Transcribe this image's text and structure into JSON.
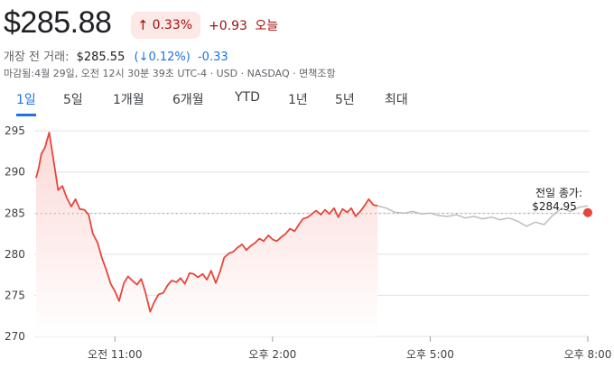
{
  "quote": {
    "price": "$285.88",
    "change_pct": "0.33%",
    "change_arrow": "↑",
    "change_abs": "+0.93",
    "change_period": "오늘"
  },
  "premarket": {
    "label": "개장 전 거래:",
    "price": "$285.55",
    "pct": "(↓0.12%)",
    "abs": "-0.33"
  },
  "closed_info": "마감됨:4월 29일, 오전 12시 30분 39초 UTC-4 · USD · NASDAQ · 면책조항",
  "tabs": [
    {
      "label": "1일",
      "active": true
    },
    {
      "label": "5일",
      "active": false
    },
    {
      "label": "1개월",
      "active": false
    },
    {
      "label": "6개월",
      "active": false
    },
    {
      "label": "YTD",
      "active": false
    },
    {
      "label": "1년",
      "active": false
    },
    {
      "label": "5년",
      "active": false
    },
    {
      "label": "최대",
      "active": false
    }
  ],
  "colors": {
    "regular_line": "#e8453c",
    "after_hours_line": "#bdbdbd",
    "fill_top": "#fbd9d6",
    "grid": "#e0e0e0",
    "prev_close_dot": "#e8453c"
  },
  "chart_data": {
    "type": "line",
    "x_ticks": [
      "오전 11:00",
      "오후 2:00",
      "오후 5:00",
      "오후 8:00"
    ],
    "y_ticks": [
      270,
      275,
      280,
      285,
      290,
      295
    ],
    "ylim": [
      270,
      296
    ],
    "previous_close": {
      "label": "전일 종가:",
      "value": "$284.95",
      "y": 284.95
    },
    "series": [
      {
        "segment": "regular",
        "x": [
          9.5,
          9.55,
          9.6,
          9.67,
          9.75,
          9.83,
          9.92,
          10.0,
          10.08,
          10.17,
          10.25,
          10.33,
          10.42,
          10.5,
          10.58,
          10.67,
          10.75,
          10.83,
          10.92,
          11.0,
          11.08,
          11.17,
          11.25,
          11.33,
          11.42,
          11.5,
          11.58,
          11.67,
          11.75,
          11.83,
          11.92,
          12.0,
          12.08,
          12.17,
          12.25,
          12.33,
          12.42,
          12.5,
          12.58,
          12.67,
          12.75,
          12.83,
          12.92,
          13.0,
          13.08,
          13.17,
          13.25,
          13.33,
          13.42,
          13.5,
          13.58,
          13.67,
          13.75,
          13.83,
          13.92,
          14.0,
          14.08,
          14.17,
          14.25,
          14.33,
          14.42,
          14.5,
          14.58,
          14.67,
          14.75,
          14.83,
          14.92,
          15.0,
          15.08,
          15.17,
          15.25,
          15.33,
          15.42,
          15.5,
          15.58,
          15.67,
          15.75,
          15.83,
          15.92,
          16.0
        ],
        "y": [
          289.3,
          290.5,
          292.2,
          293.0,
          294.8,
          291.5,
          287.8,
          288.3,
          286.9,
          285.8,
          286.7,
          285.5,
          285.4,
          284.8,
          282.5,
          281.4,
          279.6,
          278.2,
          276.4,
          275.5,
          274.3,
          276.5,
          277.3,
          276.8,
          276.3,
          277.0,
          275.4,
          273.0,
          274.2,
          275.1,
          275.3,
          276.2,
          276.8,
          276.6,
          277.1,
          276.4,
          277.7,
          277.6,
          277.2,
          277.6,
          276.9,
          278.0,
          276.5,
          277.9,
          279.6,
          280.1,
          280.3,
          280.8,
          281.2,
          280.5,
          281.0,
          281.4,
          281.9,
          281.6,
          282.3,
          281.8,
          281.6,
          282.1,
          282.5,
          283.1,
          282.8,
          283.6,
          284.3,
          284.5,
          284.9,
          285.3,
          284.8,
          285.4,
          284.9,
          285.6,
          284.5,
          285.5,
          285.1,
          285.6,
          284.6,
          285.2,
          285.9,
          286.7,
          286.0,
          285.9
        ]
      },
      {
        "segment": "after_hours",
        "x": [
          16.0,
          16.17,
          16.33,
          16.5,
          16.67,
          16.83,
          17.0,
          17.17,
          17.33,
          17.5,
          17.67,
          17.83,
          18.0,
          18.17,
          18.33,
          18.5,
          18.67,
          18.83,
          19.0,
          19.17,
          19.33,
          19.5,
          19.67,
          19.83,
          20.0
        ],
        "y": [
          285.9,
          285.6,
          285.1,
          285.0,
          285.2,
          284.9,
          285.0,
          284.7,
          284.6,
          284.8,
          284.4,
          284.6,
          284.3,
          284.5,
          284.2,
          284.4,
          284.0,
          283.4,
          283.9,
          283.6,
          284.7,
          285.6,
          285.2,
          285.7,
          285.88
        ]
      }
    ]
  }
}
